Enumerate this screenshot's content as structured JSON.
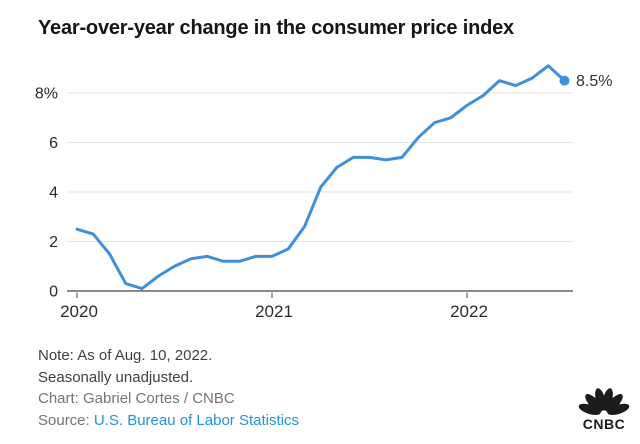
{
  "title": "Year-over-year change in the consumer price index",
  "chart_data": {
    "type": "line",
    "title": "Year-over-year change in the consumer price index",
    "x": [
      "Jan 2020",
      "Feb 2020",
      "Mar 2020",
      "Apr 2020",
      "May 2020",
      "Jun 2020",
      "Jul 2020",
      "Aug 2020",
      "Sep 2020",
      "Oct 2020",
      "Nov 2020",
      "Dec 2020",
      "Jan 2021",
      "Feb 2021",
      "Mar 2021",
      "Apr 2021",
      "May 2021",
      "Jun 2021",
      "Jul 2021",
      "Aug 2021",
      "Sep 2021",
      "Oct 2021",
      "Nov 2021",
      "Dec 2021",
      "Jan 2022",
      "Feb 2022",
      "Mar 2022",
      "Apr 2022",
      "May 2022",
      "Jun 2022",
      "Jul 2022"
    ],
    "values": [
      2.5,
      2.3,
      1.5,
      0.3,
      0.1,
      0.6,
      1.0,
      1.3,
      1.4,
      1.2,
      1.2,
      1.4,
      1.4,
      1.7,
      2.6,
      4.2,
      5.0,
      5.4,
      5.4,
      5.3,
      5.4,
      6.2,
      6.8,
      7.0,
      7.5,
      7.9,
      8.5,
      8.3,
      8.6,
      9.1,
      8.5
    ],
    "ylabel": "",
    "xlabel": "",
    "ylim": [
      0,
      9.5
    ],
    "y_tick_values": [
      8,
      6,
      4,
      2,
      0
    ],
    "y_tick_labels": [
      "8%",
      "6",
      "4",
      "2",
      "0"
    ],
    "x_tick_labels": [
      "2020",
      "2021",
      "2022"
    ],
    "x_tick_month_indices": [
      0,
      12,
      24
    ],
    "grid": "horizontal-only",
    "legend": "none",
    "line_color": "#3f90d8",
    "end_label": "8.5%"
  },
  "notes": {
    "note_line1": "Note: As of Aug. 10, 2022.",
    "note_line2": "Seasonally unadjusted.",
    "credit": "Chart: Gabriel Cortes / CNBC",
    "source_prefix": "Source: ",
    "source_link": "U.S. Bureau of Labor Statistics"
  },
  "logo": {
    "wordmark": "CNBC"
  },
  "colors": {
    "line": "#3f90d8",
    "link": "#2196d6",
    "grid": "#e3e3e3",
    "axis": "#8a8a8a",
    "title_text": "#161616"
  }
}
